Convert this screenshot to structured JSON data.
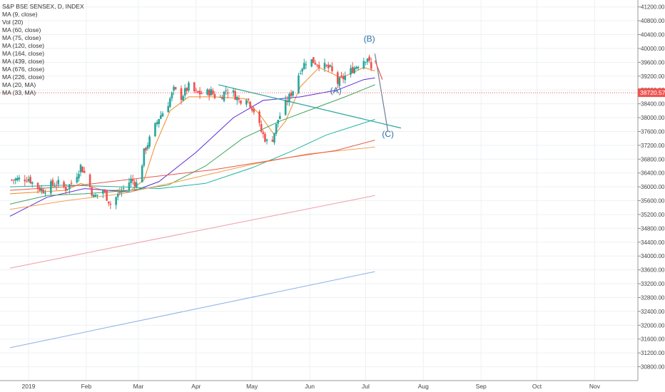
{
  "legend": {
    "title": "S&P BSE SENSEX, D, INDEX",
    "items": [
      "MA (9, close)",
      "Vol (20)",
      "MA (60, close)",
      "MA (75, close)",
      "MA (120, close)",
      "MA (164, close)",
      "MA (439, close)",
      "MA (676, close)",
      "MA (226, close)",
      "MA (20, MA)",
      "MA (33, MA)"
    ]
  },
  "colors": {
    "up": "#26a69a",
    "down": "#ef5350",
    "grid": "#eef0f3",
    "price_line": "#ef5350",
    "wave": "#2b6fa3"
  },
  "chart_data": {
    "type": "candlestick",
    "title": "S&P BSE SENSEX, D, INDEX",
    "yaxis": {
      "min": 30400,
      "max": 41400,
      "ticks": [
        "41200.00",
        "40800.00",
        "40400.00",
        "40000.00",
        "39600.00",
        "39200.00",
        "38800.00",
        "38400.00",
        "38000.00",
        "37600.00",
        "37200.00",
        "36800.00",
        "36400.00",
        "36000.00",
        "35600.00",
        "35200.00",
        "34800.00",
        "34400.00",
        "34000.00",
        "33600.00",
        "33200.00",
        "32800.00",
        "32400.00",
        "32000.00",
        "31600.00",
        "31200.00",
        "30800.00"
      ]
    },
    "xaxis": {
      "labels": [
        "2019",
        "Feb",
        "Mar",
        "Apr",
        "May",
        "Jun",
        "Jul",
        "Aug",
        "Sep",
        "Oct",
        "Nov"
      ],
      "label_days": [
        0,
        31,
        59,
        90,
        120,
        151,
        181,
        212,
        243,
        273,
        304
      ],
      "max_day": 335
    },
    "last_price": "38720.57",
    "last_price_value": 38720.57,
    "anchors": [
      [
        -10,
        36200
      ],
      [
        0,
        36250
      ],
      [
        4,
        36000
      ],
      [
        8,
        35900
      ],
      [
        12,
        36050
      ],
      [
        16,
        36100
      ],
      [
        20,
        35950
      ],
      [
        24,
        36150
      ],
      [
        28,
        36600
      ],
      [
        31,
        36300
      ],
      [
        35,
        35700
      ],
      [
        40,
        35900
      ],
      [
        44,
        35500
      ],
      [
        47,
        35700
      ],
      [
        51,
        35950
      ],
      [
        55,
        36200
      ],
      [
        59,
        36050
      ],
      [
        62,
        37000
      ],
      [
        66,
        37500
      ],
      [
        70,
        38000
      ],
      [
        74,
        38300
      ],
      [
        78,
        38800
      ],
      [
        82,
        38600
      ],
      [
        86,
        38900
      ],
      [
        90,
        38700
      ],
      [
        94,
        38700
      ],
      [
        98,
        38750
      ],
      [
        102,
        38500
      ],
      [
        106,
        38800
      ],
      [
        110,
        38700
      ],
      [
        113,
        38500
      ],
      [
        117,
        38600
      ],
      [
        121,
        38200
      ],
      [
        125,
        37600
      ],
      [
        128,
        37300
      ],
      [
        131,
        37400
      ],
      [
        134,
        37950
      ],
      [
        138,
        38400
      ],
      [
        142,
        38800
      ],
      [
        146,
        39400
      ],
      [
        150,
        39700
      ],
      [
        154,
        39600
      ],
      [
        158,
        39500
      ],
      [
        162,
        39400
      ],
      [
        166,
        39000
      ],
      [
        170,
        39200
      ],
      [
        174,
        39400
      ],
      [
        178,
        39600
      ],
      [
        182,
        39750
      ],
      [
        185,
        39200
      ],
      [
        186,
        38720
      ]
    ],
    "moving_averages": [
      {
        "name": "MA (9, close)",
        "color": "#f08a24",
        "points": [
          [
            -10,
            35800
          ],
          [
            20,
            35900
          ],
          [
            28,
            36100
          ],
          [
            40,
            35900
          ],
          [
            55,
            35900
          ],
          [
            62,
            36200
          ],
          [
            68,
            37200
          ],
          [
            76,
            38200
          ],
          [
            86,
            38600
          ],
          [
            100,
            38600
          ],
          [
            116,
            38550
          ],
          [
            124,
            38100
          ],
          [
            132,
            37500
          ],
          [
            138,
            37900
          ],
          [
            146,
            38900
          ],
          [
            156,
            39450
          ],
          [
            168,
            39150
          ],
          [
            180,
            39450
          ],
          [
            186,
            39350
          ]
        ]
      },
      {
        "name": "MA (60, close)",
        "color": "#5b2bd6",
        "points": [
          [
            -10,
            35150
          ],
          [
            10,
            35700
          ],
          [
            30,
            35950
          ],
          [
            55,
            35850
          ],
          [
            70,
            36150
          ],
          [
            90,
            37000
          ],
          [
            110,
            38000
          ],
          [
            126,
            38500
          ],
          [
            146,
            38600
          ],
          [
            166,
            38800
          ],
          [
            180,
            39100
          ],
          [
            186,
            39150
          ]
        ]
      },
      {
        "name": "MA (75, close)",
        "color": "#3fa45b",
        "points": [
          [
            -10,
            35500
          ],
          [
            10,
            35750
          ],
          [
            30,
            35800
          ],
          [
            55,
            35900
          ],
          [
            75,
            36050
          ],
          [
            95,
            36600
          ],
          [
            115,
            37400
          ],
          [
            135,
            37900
          ],
          [
            155,
            38300
          ],
          [
            170,
            38600
          ],
          [
            186,
            38950
          ]
        ]
      },
      {
        "name": "MA (120, close)",
        "color": "#1fb5a0",
        "points": [
          [
            -10,
            36000
          ],
          [
            20,
            36050
          ],
          [
            50,
            36000
          ],
          [
            70,
            35950
          ],
          [
            95,
            36100
          ],
          [
            120,
            36550
          ],
          [
            140,
            37000
          ],
          [
            160,
            37500
          ],
          [
            186,
            37950
          ]
        ]
      },
      {
        "name": "MA (164, close)",
        "color": "#f4a14f",
        "points": [
          [
            -10,
            35350
          ],
          [
            20,
            35600
          ],
          [
            50,
            35800
          ],
          [
            80,
            36150
          ],
          [
            120,
            36650
          ],
          [
            150,
            36950
          ],
          [
            186,
            37150
          ]
        ]
      },
      {
        "name": "MA (226, close)",
        "color": "#e8584b",
        "points": [
          [
            -10,
            35900
          ],
          [
            20,
            36000
          ],
          [
            60,
            36250
          ],
          [
            100,
            36500
          ],
          [
            140,
            36850
          ],
          [
            165,
            37050
          ],
          [
            186,
            37350
          ]
        ]
      },
      {
        "name": "MA (439, close)",
        "color": "#f29aa6",
        "points": [
          [
            -10,
            33650
          ],
          [
            186,
            35750
          ]
        ]
      },
      {
        "name": "MA (676, close)",
        "color": "#8aafe8",
        "points": [
          [
            -10,
            31350
          ],
          [
            186,
            33550
          ]
        ]
      }
    ],
    "trendlines": [
      {
        "from": [
          102,
          38950
        ],
        "to": [
          200,
          37700
        ],
        "color": "#26a69a"
      },
      {
        "from": [
          186,
          39850
        ],
        "to": [
          193,
          37600
        ],
        "color": "#6f7f99"
      },
      {
        "from": [
          186,
          39650
        ],
        "to": [
          190,
          39100
        ],
        "color": "#ef5350"
      }
    ],
    "wave_labels": [
      {
        "text": "(B)",
        "day": 183,
        "value": 40200
      },
      {
        "text": "(A)",
        "day": 165,
        "value": 38700
      },
      {
        "text": "(C)",
        "day": 193,
        "value": 37450
      }
    ]
  }
}
